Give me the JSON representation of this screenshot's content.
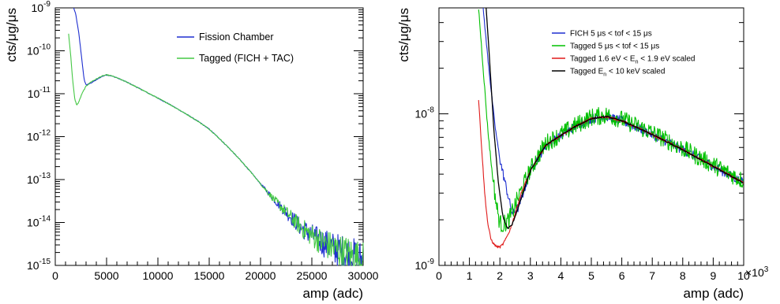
{
  "colors": {
    "fission_chamber": "#1f2fd0",
    "tagged_fich_tac": "#45c845",
    "fich_window": "#1f2fd0",
    "tagged_window": "#00c000",
    "tagged_scaled_red": "#e01a1a",
    "tagged_en_black": "#000000"
  },
  "chart_data": [
    {
      "type": "line",
      "xlabel": "amp (adc)",
      "ylabel": "cts/μg/μs",
      "xlim": [
        0,
        30000
      ],
      "ylim": [
        1e-15,
        1e-09
      ],
      "y_scale": "log",
      "grid": false,
      "legend_position": "top-right",
      "x_ticks": [
        "0",
        "5000",
        "10000",
        "15000",
        "20000",
        "25000",
        "30000"
      ],
      "y_ticks": [
        {
          "base": "10",
          "exp": "-9",
          "value": 1e-09
        },
        {
          "base": "10",
          "exp": "-10",
          "value": 1e-10
        },
        {
          "base": "10",
          "exp": "-11",
          "value": 1e-11
        },
        {
          "base": "10",
          "exp": "-12",
          "value": 1e-12
        },
        {
          "base": "10",
          "exp": "-13",
          "value": 1e-13
        },
        {
          "base": "10",
          "exp": "-14",
          "value": 1e-14
        },
        {
          "base": "10",
          "exp": "-15",
          "value": 1e-15
        }
      ],
      "series": [
        {
          "name": "Fission Chamber",
          "x": [
            1800,
            2000,
            2300,
            2600,
            2800,
            3000,
            3300,
            3600,
            4000,
            4500,
            5000,
            5500,
            6000,
            7000,
            8000,
            9000,
            10000,
            11000,
            12000,
            13000,
            14000,
            15000,
            16000,
            17000,
            18000,
            19000,
            20000,
            21000,
            22000,
            23000,
            24000,
            25000,
            26000,
            27000,
            28000,
            29000,
            30000
          ],
          "y": [
            1e-09,
            7e-10,
            2.5e-10,
            6e-11,
            2.2e-11,
            1.6e-11,
            1.7e-11,
            1.85e-11,
            2.1e-11,
            2.5e-11,
            2.75e-11,
            2.6e-11,
            2.35e-11,
            1.85e-11,
            1.4e-11,
            1.05e-11,
            7.9e-12,
            5.9e-12,
            4.3e-12,
            3.1e-12,
            2.2e-12,
            1.5e-12,
            9e-13,
            5.2e-13,
            2.9e-13,
            1.55e-13,
            8e-14,
            4.2e-14,
            2.3e-14,
            1.3e-14,
            7.5e-15,
            5e-15,
            3.5e-15,
            2.6e-15,
            2e-15,
            1.6e-15,
            1.3e-15
          ]
        },
        {
          "name": "Tagged (FICH + TAC)",
          "x": [
            1300,
            1500,
            1700,
            1900,
            2100,
            2300,
            2600,
            3000,
            3500,
            4000,
            4500,
            5000,
            5500,
            6000,
            7000,
            8000,
            9000,
            10000,
            11000,
            12000,
            13000,
            14000,
            15000,
            16000,
            17000,
            18000,
            19000,
            20000,
            21000,
            22000,
            23000,
            24000,
            25000,
            26000,
            27000,
            28000,
            29000,
            30000
          ],
          "y": [
            2.5e-10,
            8e-11,
            2e-11,
            7.5e-12,
            5.4e-12,
            6.5e-12,
            1e-11,
            1.5e-11,
            1.9e-11,
            2.2e-11,
            2.55e-11,
            2.75e-11,
            2.6e-11,
            2.35e-11,
            1.85e-11,
            1.4e-11,
            1.05e-11,
            7.9e-12,
            5.9e-12,
            4.3e-12,
            3.1e-12,
            2.2e-12,
            1.5e-12,
            9e-13,
            5.2e-13,
            2.9e-13,
            1.55e-13,
            8e-14,
            4.2e-14,
            2.3e-14,
            1.3e-14,
            7.5e-15,
            5e-15,
            3.5e-15,
            2.6e-15,
            2e-15,
            1.6e-15,
            1.3e-15
          ]
        }
      ]
    },
    {
      "type": "line",
      "xlabel": "amp (adc)",
      "ylabel": "cts/μg/μs",
      "x_multiplier": {
        "base": "×10",
        "exp": "3"
      },
      "xlim": [
        0,
        10
      ],
      "ylim": [
        1e-09,
        5e-08
      ],
      "y_scale": "log",
      "grid": false,
      "legend_position": "top-right",
      "x_ticks": [
        "0",
        "1",
        "2",
        "3",
        "4",
        "5",
        "6",
        "7",
        "8",
        "9",
        "10"
      ],
      "y_ticks": [
        {
          "base": "10",
          "exp": "-8",
          "value": 1e-08
        },
        {
          "base": "10",
          "exp": "-9",
          "value": 1e-09
        }
      ],
      "legend": [
        {
          "parts": [
            "FICH 5 μs < tof < 15 μs"
          ]
        },
        {
          "parts": [
            "Tagged 5 μs < tof < 15 μs"
          ]
        },
        {
          "parts": [
            "Tagged 1.6 eV < E",
            "n",
            " < 1.9 eV scaled"
          ]
        },
        {
          "parts": [
            "Tagged E",
            "n",
            " < 10 keV scaled"
          ]
        }
      ],
      "series": [
        {
          "x": [
            1.45,
            1.55,
            1.7,
            1.85,
            2.0,
            2.2,
            2.4,
            2.6,
            3.0,
            3.5,
            4.0,
            4.5,
            5.0,
            5.5,
            6.0,
            7.0,
            8.0,
            9.0,
            10.0
          ],
          "y": [
            5e-08,
            3e-08,
            1.5e-08,
            8e-09,
            5e-09,
            3.3e-09,
            2.2e-09,
            2.4e-09,
            4.2e-09,
            6.2e-09,
            7.2e-09,
            8.3e-09,
            9.3e-09,
            9.6e-09,
            9e-09,
            7.3e-09,
            5.8e-09,
            4.5e-09,
            3.5e-09
          ]
        },
        {
          "x": [
            1.3,
            1.45,
            1.6,
            1.75,
            1.9,
            2.0,
            2.1,
            2.3,
            2.6,
            3.0,
            3.5,
            4.0,
            4.5,
            5.0,
            5.5,
            6.0,
            7.0,
            8.0,
            9.0,
            10.0
          ],
          "y": [
            5e-08,
            2e-08,
            8e-09,
            4e-09,
            2.4e-09,
            1.9e-09,
            1.85e-09,
            2e-09,
            2.8e-09,
            4.3e-09,
            6.4e-09,
            7.3e-09,
            8.4e-09,
            9.5e-09,
            9.8e-09,
            9.2e-09,
            7.5e-09,
            5.9e-09,
            4.6e-09,
            3.6e-09
          ]
        },
        {
          "x": [
            1.3,
            1.4,
            1.5,
            1.6,
            1.7,
            1.8,
            1.9,
            2.0,
            2.1,
            2.2,
            2.35,
            2.5,
            2.7,
            3.0,
            3.5,
            4.0,
            4.5,
            5.0,
            5.5,
            6.0,
            7.0,
            8.0,
            9.0,
            10.0
          ],
          "y": [
            1.25e-08,
            6e-09,
            3e-09,
            1.9e-09,
            1.5e-09,
            1.38e-09,
            1.33e-09,
            1.32e-09,
            1.38e-09,
            1.5e-09,
            1.75e-09,
            2.2e-09,
            3e-09,
            4.2e-09,
            6.2e-09,
            7.2e-09,
            8.3e-09,
            9.3e-09,
            9.6e-09,
            9e-09,
            7.3e-09,
            5.8e-09,
            4.5e-09,
            3.5e-09
          ]
        },
        {
          "x": [
            1.55,
            1.65,
            1.8,
            1.95,
            2.1,
            2.25,
            2.4,
            2.6,
            3.0,
            3.5,
            4.0,
            4.5,
            5.0,
            5.5,
            6.0,
            7.0,
            8.0,
            9.0,
            10.0
          ],
          "y": [
            5e-08,
            2.5e-08,
            8e-09,
            3.5e-09,
            2.1e-09,
            1.75e-09,
            1.85e-09,
            2.4e-09,
            4.2e-09,
            6.2e-09,
            7.2e-09,
            8.3e-09,
            9.3e-09,
            9.6e-09,
            9e-09,
            7.3e-09,
            5.8e-09,
            4.5e-09,
            3.5e-09
          ]
        }
      ]
    }
  ]
}
